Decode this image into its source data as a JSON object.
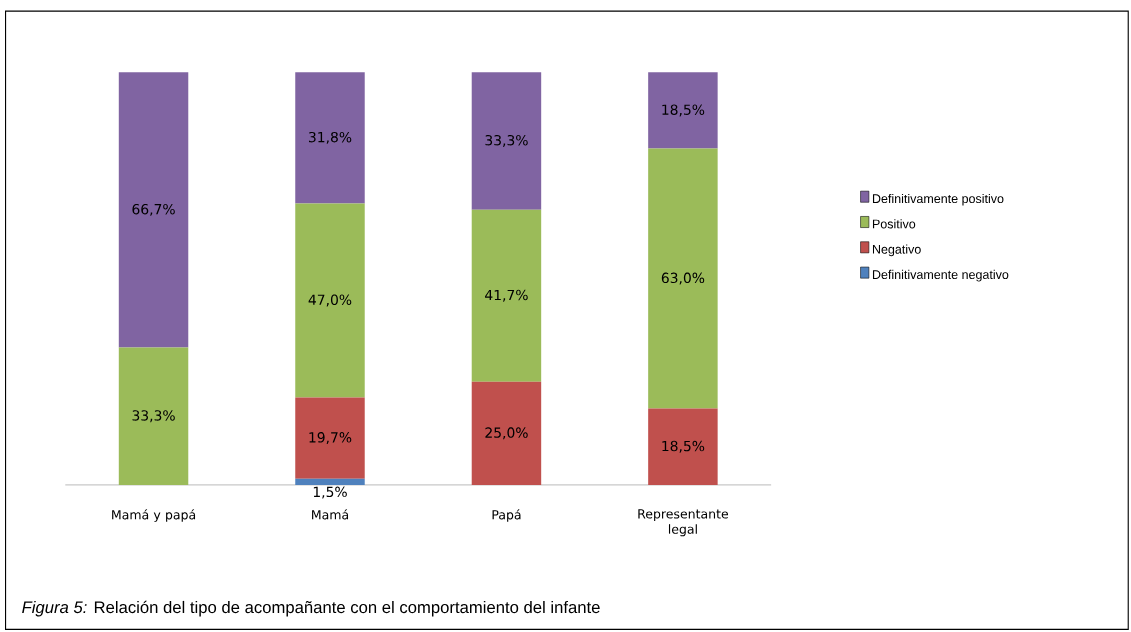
{
  "chart_data": {
    "type": "bar",
    "stacked": true,
    "legend": "right",
    "categories": [
      "Mamá y papá",
      "Mamá",
      "Papá",
      "Representante legal"
    ],
    "series": [
      {
        "name": "Definitivamente negativo",
        "color": "#4f81bd",
        "values": [
          null,
          1.5,
          null,
          null
        ],
        "value_labels": [
          null,
          "1,5%",
          null,
          null
        ]
      },
      {
        "name": "Negativo",
        "color": "#c0504d",
        "values": [
          null,
          19.7,
          25.0,
          18.5
        ],
        "value_labels": [
          null,
          "19,7%",
          "25,0%",
          "18,5%"
        ]
      },
      {
        "name": "Positivo",
        "color": "#9bbb59",
        "values": [
          33.3,
          47.0,
          41.7,
          63.0
        ],
        "value_labels": [
          "33,3%",
          "47,0%",
          "41,7%",
          "63,0%"
        ]
      },
      {
        "name": "Definitivamente positivo",
        "color": "#8064a2",
        "values": [
          66.7,
          31.8,
          33.3,
          18.5
        ],
        "value_labels": [
          "66,7%",
          "31,8%",
          "33,3%",
          "18,5%"
        ]
      }
    ],
    "annotations": [
      "*Figura 5:* Relación del tipo de acompañante con el comportamiento del infante"
    ]
  }
}
